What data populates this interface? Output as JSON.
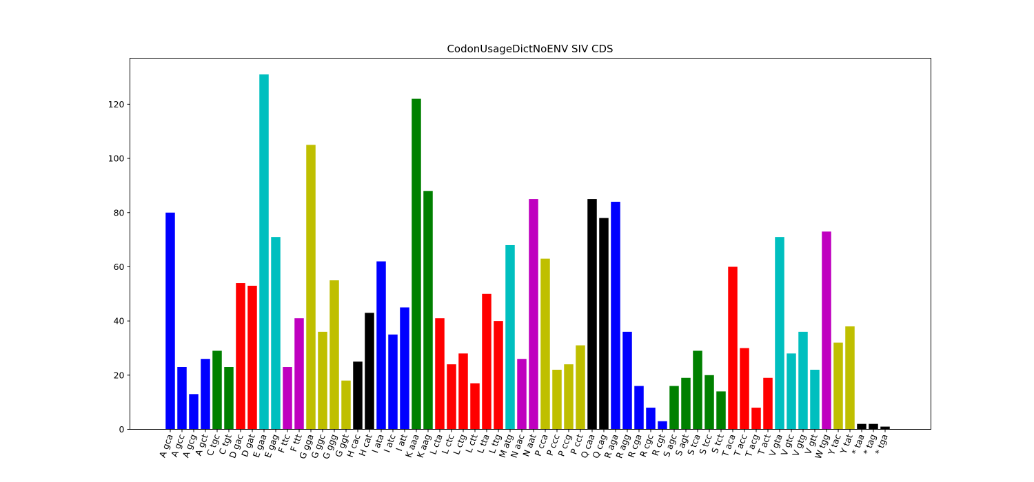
{
  "chart_data": {
    "type": "bar",
    "title": "CodonUsageDictNoENV SIV CDS",
    "xlabel": "",
    "ylabel": "",
    "ylim": [
      0,
      137
    ],
    "yticks": [
      0,
      20,
      40,
      60,
      80,
      100,
      120
    ],
    "grid": false,
    "categories": [
      "A gca",
      "A gcc",
      "A gcg",
      "A gct",
      "C tgc",
      "C tgt",
      "D gac",
      "D gat",
      "E gaa",
      "E gag",
      "F ttc",
      "F ttt",
      "G gga",
      "G ggc",
      "G ggg",
      "G ggt",
      "H cac",
      "H cat",
      "I ata",
      "I atc",
      "I att",
      "K aaa",
      "K aag",
      "L cta",
      "L ctc",
      "L ctg",
      "L ctt",
      "L tta",
      "L ttg",
      "M atg",
      "N aac",
      "N aat",
      "P cca",
      "P ccc",
      "P ccg",
      "P cct",
      "Q caa",
      "Q cag",
      "R aga",
      "R agg",
      "R cga",
      "R cgc",
      "R cgt",
      "S agc",
      "S agt",
      "S tca",
      "S tcc",
      "S tct",
      "T aca",
      "T acc",
      "T acg",
      "T act",
      "V gta",
      "V gtc",
      "V gtg",
      "V gtt",
      "W tgg",
      "Y tac",
      "Y tat",
      "* taa",
      "* tag",
      "* tga"
    ],
    "values": [
      80,
      23,
      13,
      26,
      29,
      23,
      54,
      53,
      131,
      71,
      23,
      41,
      105,
      36,
      55,
      18,
      25,
      43,
      62,
      35,
      45,
      122,
      88,
      41,
      24,
      28,
      17,
      50,
      40,
      68,
      26,
      85,
      63,
      22,
      24,
      31,
      85,
      78,
      84,
      36,
      16,
      8,
      3,
      16,
      19,
      29,
      20,
      14,
      60,
      30,
      8,
      19,
      71,
      28,
      36,
      22,
      73,
      32,
      38,
      2,
      2,
      1
    ],
    "bar_colors": [
      "#0000ff",
      "#0000ff",
      "#0000ff",
      "#0000ff",
      "#008000",
      "#008000",
      "#ff0000",
      "#ff0000",
      "#00bfbf",
      "#00bfbf",
      "#bf00bf",
      "#bf00bf",
      "#bfbf00",
      "#bfbf00",
      "#bfbf00",
      "#bfbf00",
      "#000000",
      "#000000",
      "#0000ff",
      "#0000ff",
      "#0000ff",
      "#008000",
      "#008000",
      "#ff0000",
      "#ff0000",
      "#ff0000",
      "#ff0000",
      "#ff0000",
      "#ff0000",
      "#00bfbf",
      "#bf00bf",
      "#bf00bf",
      "#bfbf00",
      "#bfbf00",
      "#bfbf00",
      "#bfbf00",
      "#000000",
      "#000000",
      "#0000ff",
      "#0000ff",
      "#0000ff",
      "#0000ff",
      "#0000ff",
      "#008000",
      "#008000",
      "#008000",
      "#008000",
      "#008000",
      "#ff0000",
      "#ff0000",
      "#ff0000",
      "#ff0000",
      "#00bfbf",
      "#00bfbf",
      "#00bfbf",
      "#00bfbf",
      "#bf00bf",
      "#bfbf00",
      "#bfbf00",
      "#000000",
      "#000000",
      "#000000"
    ]
  }
}
